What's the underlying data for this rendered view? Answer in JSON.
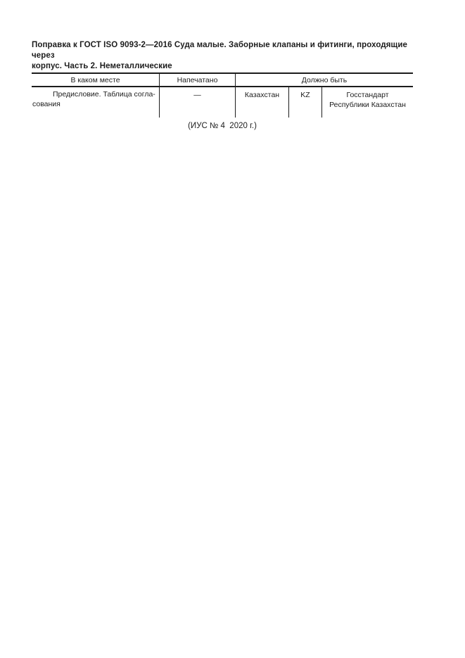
{
  "page": {
    "background": "#ffffff",
    "ink_color": "#1c1c1c"
  },
  "title": {
    "lines": [
      "Поправка к ГОСТ ISO 9093-2—2016 Суда малые. Заборные клапаны и фитинги, проходящие через",
      "корпус. Часть 2. Неметаллические"
    ],
    "full_text": "Поправка к ГОСТ ISO 9093-2—2016 Суда малые. Заборные клапаны и фитинги, проходящие через корпус. Часть 2. Неметаллические"
  },
  "table": {
    "headers": {
      "location": "В каком месте",
      "printed": "Напечатано",
      "should_be": "Должно быть"
    },
    "row": {
      "location_lines": [
        "Предисловие. Таблица согла-",
        "сования"
      ],
      "location_full": "Предисловие. Таблица согласования",
      "printed": "—",
      "should_be": {
        "country": "Казахстан",
        "code": "KZ",
        "authority_lines": [
          "Госстандарт",
          "Республики Казахстан"
        ],
        "authority_full": "Госстандарт Республики Казахстан"
      }
    }
  },
  "footer": {
    "caption": "(ИУС № 4  2020 г.)"
  }
}
